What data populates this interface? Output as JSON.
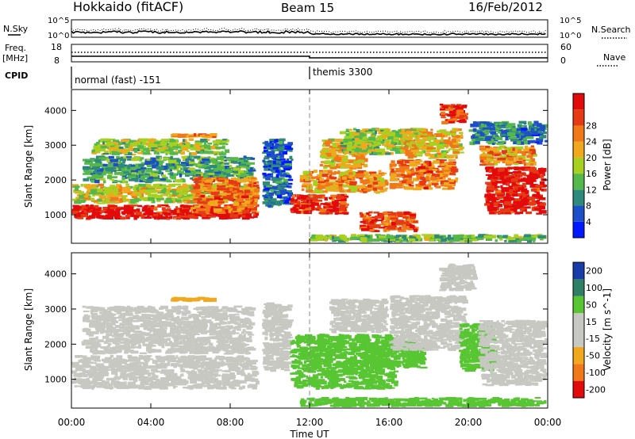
{
  "header": {
    "station": "Hokkaido (fitACF)",
    "beam": "Beam 15",
    "date": "16/Feb/2012"
  },
  "noise_panel": {
    "left_label": "N.Sky",
    "right_label": "N.Search",
    "left_ticks": [
      "10^5",
      "10^0"
    ],
    "right_ticks": [
      "10^5",
      "10^0"
    ]
  },
  "freq_panel": {
    "left_label_1": "Freq.",
    "left_label_2": "[MHz]",
    "left_ticks": [
      "18",
      "8"
    ],
    "right_ticks": [
      "60",
      "0"
    ],
    "right_label": "Nave"
  },
  "cpid_panel": {
    "label": "CPID",
    "modes": [
      {
        "text": "normal (fast) -151",
        "start_hour": 0
      },
      {
        "text": "themis 3300",
        "start_hour": 12
      }
    ]
  },
  "axes": {
    "ylabel": "Slant Range [km]",
    "yticks": [
      "1000",
      "2000",
      "3000",
      "4000"
    ],
    "ytick_values": [
      1000,
      2000,
      3000,
      4000
    ],
    "ylim": [
      180,
      4600
    ],
    "xlabel": "Time UT",
    "xticks": [
      "00:00",
      "04:00",
      "08:00",
      "12:00",
      "16:00",
      "20:00",
      "00:00"
    ],
    "xtick_values": [
      0,
      4,
      8,
      12,
      16,
      20,
      24
    ],
    "xlim": [
      0,
      24
    ]
  },
  "chart_data": [
    {
      "type": "heatmap",
      "panel": "power",
      "colorbar_label": "Power [dB]",
      "colorbar_ticks": [
        "4",
        "8",
        "12",
        "16",
        "20",
        "24",
        "28"
      ],
      "color_levels": [
        "#0018ff",
        "#1d4fc8",
        "#2e8a7a",
        "#55b84a",
        "#a8d020",
        "#f0a81e",
        "#f07818",
        "#e63a14",
        "#e20a0a"
      ],
      "color_range": [
        0,
        30
      ],
      "bands": [
        {
          "t0": 0.0,
          "t1": 9.5,
          "r0": 850,
          "r1": 1300,
          "v": 28
        },
        {
          "t0": 0.0,
          "t1": 9.5,
          "r0": 1300,
          "r1": 1900,
          "v": 16
        },
        {
          "t0": 0.5,
          "t1": 9.3,
          "r0": 1900,
          "r1": 2700,
          "v": 10
        },
        {
          "t0": 1.0,
          "t1": 8.0,
          "r0": 2700,
          "r1": 3200,
          "v": 14
        },
        {
          "t0": 5.0,
          "t1": 7.5,
          "r0": 3200,
          "r1": 3350,
          "v": 22
        },
        {
          "t0": 6.0,
          "t1": 9.5,
          "r0": 1000,
          "r1": 2100,
          "v": 22
        },
        {
          "t0": 9.6,
          "t1": 11.2,
          "r0": 1200,
          "r1": 3200,
          "v": 6
        },
        {
          "t0": 11.0,
          "t1": 14.0,
          "r0": 1000,
          "r1": 1600,
          "v": 26
        },
        {
          "t0": 11.5,
          "t1": 16.0,
          "r0": 1600,
          "r1": 2300,
          "v": 20
        },
        {
          "t0": 12.5,
          "t1": 15.0,
          "r0": 2300,
          "r1": 3200,
          "v": 18
        },
        {
          "t0": 13.5,
          "t1": 17.0,
          "r0": 2700,
          "r1": 3500,
          "v": 14
        },
        {
          "t0": 14.5,
          "t1": 17.5,
          "r0": 500,
          "r1": 1100,
          "v": 24
        },
        {
          "t0": 16.0,
          "t1": 19.5,
          "r0": 1700,
          "r1": 2600,
          "v": 22
        },
        {
          "t0": 16.5,
          "t1": 19.8,
          "r0": 2600,
          "r1": 3500,
          "v": 18
        },
        {
          "t0": 18.5,
          "t1": 20.0,
          "r0": 3600,
          "r1": 4200,
          "v": 26
        },
        {
          "t0": 20.0,
          "t1": 24.0,
          "r0": 3000,
          "r1": 3700,
          "v": 8
        },
        {
          "t0": 20.8,
          "t1": 24.0,
          "r0": 1000,
          "r1": 2400,
          "v": 28
        },
        {
          "t0": 20.5,
          "t1": 23.5,
          "r0": 2400,
          "r1": 3000,
          "v": 20
        },
        {
          "t0": 12.0,
          "t1": 24.0,
          "r0": 200,
          "r1": 450,
          "v": 12
        }
      ]
    },
    {
      "type": "heatmap",
      "panel": "velocity",
      "colorbar_label": "Velocity [m s^-1]",
      "colorbar_ticks": [
        "200",
        "100",
        "50",
        "15",
        "-15",
        "-50",
        "-100",
        "-200"
      ],
      "color_levels": [
        "#1a3caa",
        "#2f7f64",
        "#58c632",
        "#c8c8c2",
        "#c8c8c2",
        "#f0a81e",
        "#f07818",
        "#e20a0a"
      ],
      "bands": [
        {
          "t0": 0.0,
          "t1": 9.5,
          "r0": 700,
          "r1": 1700,
          "v": 0
        },
        {
          "t0": 0.5,
          "t1": 9.3,
          "r0": 1700,
          "r1": 3100,
          "v": 0
        },
        {
          "t0": 5.0,
          "t1": 7.5,
          "r0": 3200,
          "r1": 3350,
          "v": -60
        },
        {
          "t0": 9.6,
          "t1": 11.2,
          "r0": 1200,
          "r1": 3200,
          "v": 0
        },
        {
          "t0": 11.0,
          "t1": 16.5,
          "r0": 700,
          "r1": 2300,
          "v": 40
        },
        {
          "t0": 13.0,
          "t1": 16.0,
          "r0": 2300,
          "r1": 3300,
          "v": 0
        },
        {
          "t0": 14.5,
          "t1": 18.0,
          "r0": 1300,
          "r1": 2100,
          "v": 40
        },
        {
          "t0": 16.0,
          "t1": 20.0,
          "r0": 1800,
          "r1": 3400,
          "v": 0
        },
        {
          "t0": 18.5,
          "t1": 20.5,
          "r0": 3500,
          "r1": 4300,
          "v": 0
        },
        {
          "t0": 19.5,
          "t1": 21.5,
          "r0": 1200,
          "r1": 2600,
          "v": 40
        },
        {
          "t0": 20.5,
          "t1": 24.0,
          "r0": 800,
          "r1": 2700,
          "v": 0
        },
        {
          "t0": 11.5,
          "t1": 24.0,
          "r0": 200,
          "r1": 500,
          "v": 40
        }
      ]
    }
  ]
}
